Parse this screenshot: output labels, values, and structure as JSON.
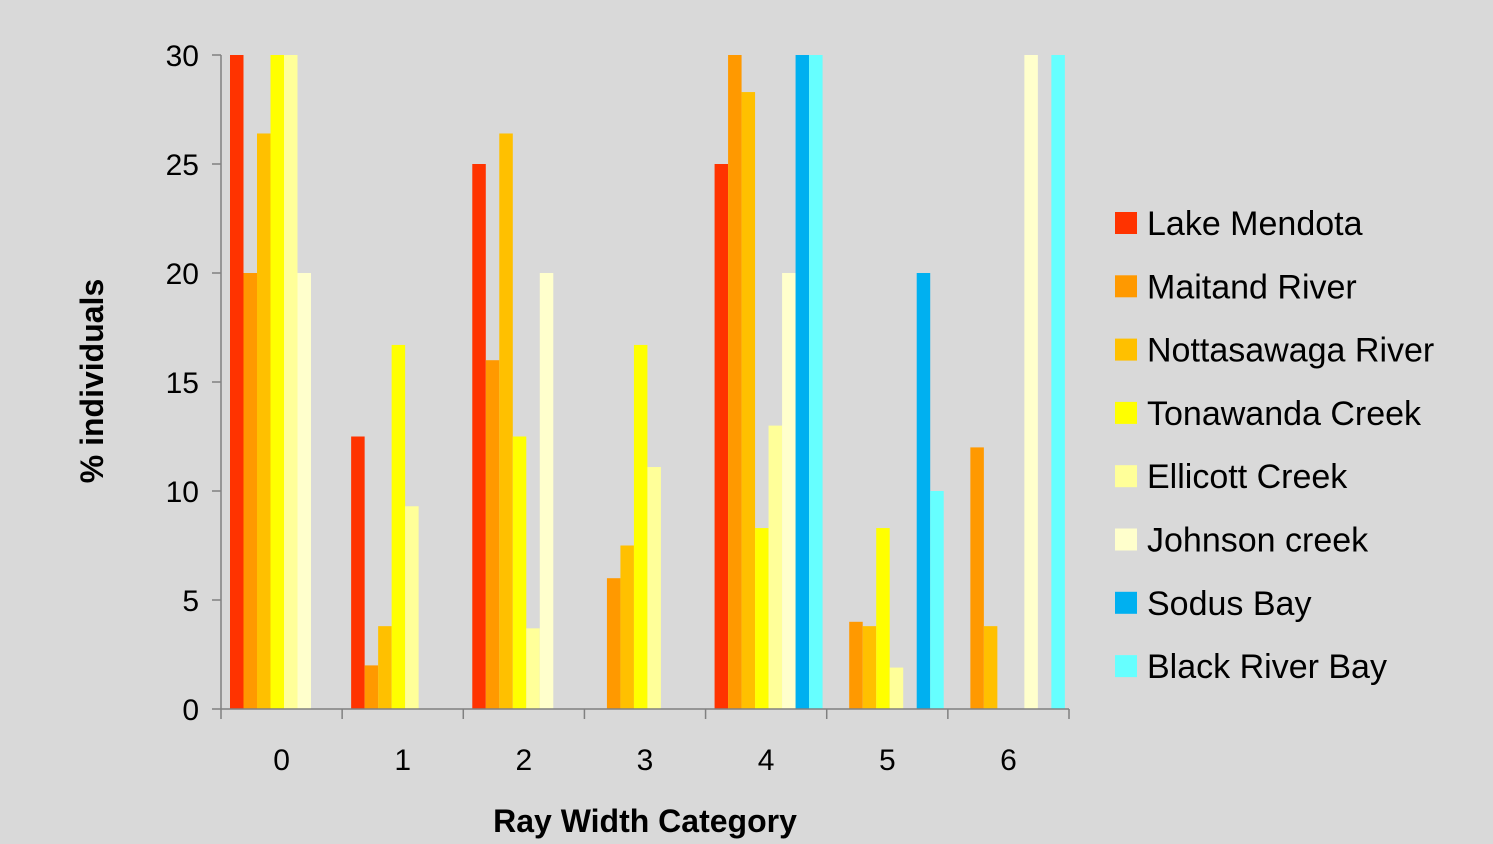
{
  "chart_data": {
    "type": "bar",
    "title": "",
    "xlabel": "Ray Width Category",
    "ylabel": "% individuals",
    "categories": [
      "0",
      "1",
      "2",
      "3",
      "4",
      "5",
      "6"
    ],
    "ylim": [
      0,
      30
    ],
    "yticks": [
      "0",
      "5",
      "10",
      "15",
      "20",
      "25",
      "30"
    ],
    "grid": false,
    "legend_position": "right",
    "series": [
      {
        "name": "Lake Mendota",
        "color": "#ff3300",
        "values": [
          30,
          12.5,
          25,
          0,
          25,
          0,
          0
        ]
      },
      {
        "name": "Maitand River",
        "color": "#ff9900",
        "values": [
          20,
          2,
          16,
          6,
          30,
          4,
          12
        ]
      },
      {
        "name": "Nottasawaga River",
        "color": "#ffc000",
        "values": [
          26.4,
          3.8,
          26.4,
          7.5,
          28.3,
          3.8,
          3.8
        ]
      },
      {
        "name": "Tonawanda Creek",
        "color": "#ffff00",
        "values": [
          30,
          16.7,
          12.5,
          16.7,
          8.3,
          8.3,
          0
        ]
      },
      {
        "name": "Ellicott Creek",
        "color": "#ffff99",
        "values": [
          30,
          9.3,
          3.7,
          11.1,
          13,
          1.9,
          0
        ]
      },
      {
        "name": "Johnson creek",
        "color": "#ffffcc",
        "values": [
          20,
          0,
          20,
          0,
          20,
          0,
          30
        ]
      },
      {
        "name": "Sodus Bay",
        "color": "#00b0f0",
        "values": [
          0,
          0,
          0,
          0,
          30,
          20,
          0
        ]
      },
      {
        "name": "Black River Bay",
        "color": "#66ffff",
        "values": [
          0,
          0,
          0,
          0,
          30,
          10,
          30
        ]
      }
    ]
  }
}
